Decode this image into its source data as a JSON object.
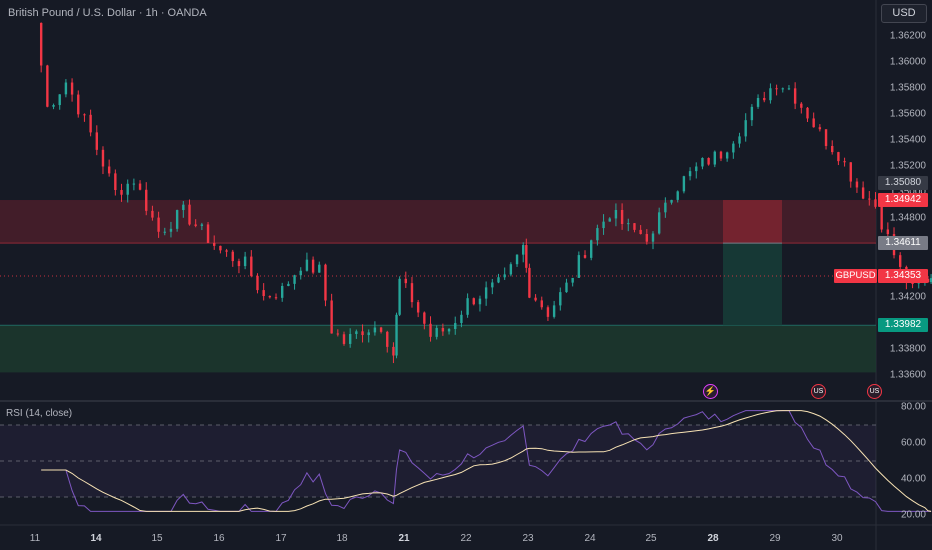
{
  "header": {
    "title": "British Pound / U.S. Dollar · 1h · OANDA",
    "currency_button": "USD"
  },
  "rsi": {
    "title": "RSI (14, close)",
    "levels": [
      70,
      50,
      30
    ],
    "axis_labels": [
      "80.00",
      "60.00",
      "40.00",
      "20.00"
    ]
  },
  "price_axis": {
    "labels": [
      "1.36200",
      "1.36000",
      "1.35800",
      "1.35600",
      "1.35400",
      "1.35200",
      "1.35000",
      "1.34800",
      "1.34200",
      "1.33800",
      "1.33600"
    ],
    "tags": {
      "upper_mid": "1.35080",
      "top_zone": "1.34942",
      "mid_box": "1.34611",
      "current": "1.34353",
      "lower": "1.33982"
    },
    "symbol_tag": "GBPUSD"
  },
  "time_axis": {
    "labels": [
      "11",
      "14",
      "15",
      "16",
      "17",
      "18",
      "21",
      "22",
      "23",
      "24",
      "25",
      "28",
      "29",
      "30"
    ],
    "bold": [
      "14",
      "21",
      "28"
    ]
  },
  "events": [
    {
      "icon": "lightning-icon",
      "glyph": "⚡"
    },
    {
      "icon": "us-flag-icon",
      "glyph": "US"
    },
    {
      "icon": "us-flag-icon",
      "glyph": "US"
    }
  ],
  "colors": {
    "up": "#26a69a",
    "down": "#f23645",
    "rsi_line": "#7e57c2",
    "rsi_ma": "#f7e2b4",
    "resistance_zone": "#4a1f2a",
    "support_zone": "#1c3a2e",
    "box_red": "#7a2530",
    "box_green": "#163a36"
  },
  "chart_data": {
    "type": "candlestick",
    "symbol": "GBPUSD",
    "interval": "1h",
    "y_range": [
      1.335,
      1.364
    ],
    "current_price": 1.34353,
    "zones": [
      {
        "type": "resistance",
        "from": 1.34611,
        "to": 1.34942
      },
      {
        "type": "support",
        "from": 1.3362,
        "to": 1.33982
      }
    ],
    "position_box": {
      "entry": 1.34611,
      "stop": 1.34942,
      "target": 1.33982
    },
    "swing_path": [
      [
        11.0,
        1.363
      ],
      [
        11.2,
        1.3565
      ],
      [
        11.5,
        1.3585
      ],
      [
        11.9,
        1.3545
      ],
      [
        12.3,
        1.35
      ],
      [
        12.6,
        1.351
      ],
      [
        13.0,
        1.347
      ],
      [
        13.4,
        1.3485
      ],
      [
        14.0,
        1.3455
      ],
      [
        14.4,
        1.3445
      ],
      [
        14.7,
        1.342
      ],
      [
        15.0,
        1.3425
      ],
      [
        15.3,
        1.3445
      ],
      [
        15.6,
        1.344
      ],
      [
        15.8,
        1.3395
      ],
      [
        16.0,
        1.3385
      ],
      [
        16.3,
        1.3395
      ],
      [
        16.6,
        1.3398
      ],
      [
        16.8,
        1.3376
      ],
      [
        16.9,
        1.3432
      ],
      [
        17.1,
        1.3418
      ],
      [
        17.4,
        1.339
      ],
      [
        17.7,
        1.3396
      ],
      [
        18.0,
        1.3416
      ],
      [
        18.3,
        1.3424
      ],
      [
        18.6,
        1.3432
      ],
      [
        18.9,
        1.3458
      ],
      [
        19.0,
        1.3425
      ],
      [
        19.3,
        1.3408
      ],
      [
        19.6,
        1.3428
      ],
      [
        20.0,
        1.3465
      ],
      [
        20.3,
        1.3485
      ],
      [
        20.6,
        1.3472
      ],
      [
        21.0,
        1.3465
      ],
      [
        21.2,
        1.3495
      ],
      [
        21.5,
        1.351
      ],
      [
        21.8,
        1.3522
      ],
      [
        22.1,
        1.353
      ],
      [
        22.5,
        1.3555
      ],
      [
        22.8,
        1.3575
      ],
      [
        23.0,
        1.3585
      ],
      [
        23.2,
        1.358
      ],
      [
        23.5,
        1.356
      ],
      [
        23.7,
        1.3545
      ],
      [
        24.0,
        1.353
      ],
      [
        24.3,
        1.3505
      ],
      [
        24.6,
        1.349
      ],
      [
        24.8,
        1.3465
      ],
      [
        25.0,
        1.344
      ],
      [
        25.2,
        1.3425
      ],
      [
        25.4,
        1.3432
      ],
      [
        25.5,
        1.3436
      ]
    ]
  }
}
